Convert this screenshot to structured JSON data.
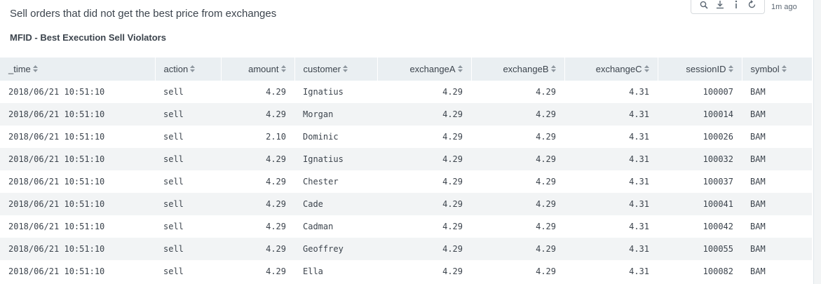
{
  "panel": {
    "description": "Sell orders that did not get the best price from exchanges",
    "title": "MFID - Best Execution Sell Violators",
    "updated": "1m ago"
  },
  "toolbar": {
    "icons": [
      "search-icon",
      "export-icon",
      "info-icon",
      "refresh-icon"
    ]
  },
  "table": {
    "columns": [
      {
        "label": "_time",
        "align": "left"
      },
      {
        "label": "action",
        "align": "left"
      },
      {
        "label": "amount",
        "align": "right"
      },
      {
        "label": "customer",
        "align": "left"
      },
      {
        "label": "exchangeA",
        "align": "right"
      },
      {
        "label": "exchangeB",
        "align": "right"
      },
      {
        "label": "exchangeC",
        "align": "right"
      },
      {
        "label": "sessionID",
        "align": "right"
      },
      {
        "label": "symbol",
        "align": "left"
      }
    ],
    "rows": [
      [
        "2018/06/21 10:51:10",
        "sell",
        "4.29",
        "Ignatius",
        "4.29",
        "4.29",
        "4.31",
        "100007",
        "BAM"
      ],
      [
        "2018/06/21 10:51:10",
        "sell",
        "4.29",
        "Morgan",
        "4.29",
        "4.29",
        "4.31",
        "100014",
        "BAM"
      ],
      [
        "2018/06/21 10:51:10",
        "sell",
        "2.10",
        "Dominic",
        "4.29",
        "4.29",
        "4.31",
        "100026",
        "BAM"
      ],
      [
        "2018/06/21 10:51:10",
        "sell",
        "4.29",
        "Ignatius",
        "4.29",
        "4.29",
        "4.31",
        "100032",
        "BAM"
      ],
      [
        "2018/06/21 10:51:10",
        "sell",
        "4.29",
        "Chester",
        "4.29",
        "4.29",
        "4.31",
        "100037",
        "BAM"
      ],
      [
        "2018/06/21 10:51:10",
        "sell",
        "4.29",
        "Cade",
        "4.29",
        "4.29",
        "4.31",
        "100041",
        "BAM"
      ],
      [
        "2018/06/21 10:51:10",
        "sell",
        "4.29",
        "Cadman",
        "4.29",
        "4.29",
        "4.31",
        "100042",
        "BAM"
      ],
      [
        "2018/06/21 10:51:10",
        "sell",
        "4.29",
        "Geoffrey",
        "4.29",
        "4.29",
        "4.31",
        "100055",
        "BAM"
      ],
      [
        "2018/06/21 10:51:10",
        "sell",
        "4.29",
        "Ella",
        "4.29",
        "4.29",
        "4.31",
        "100082",
        "BAM"
      ]
    ]
  }
}
